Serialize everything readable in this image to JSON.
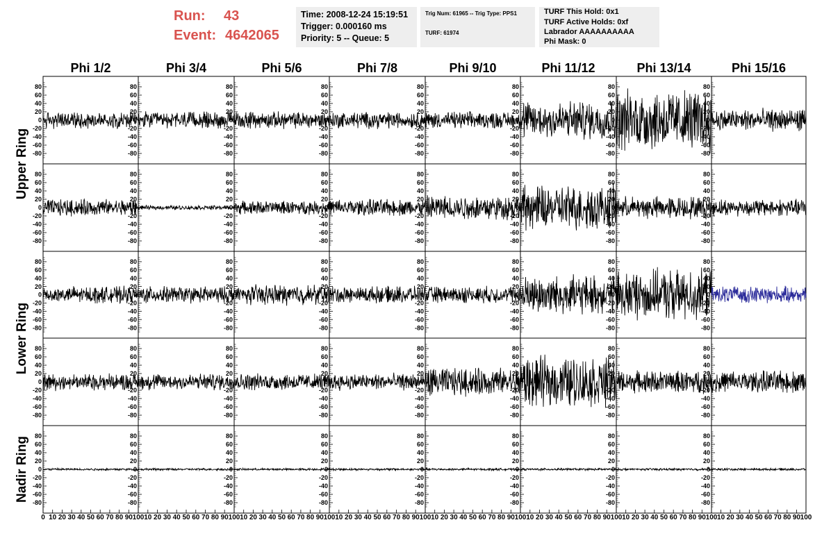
{
  "header": {
    "run_label": "Run:",
    "run_value": "43",
    "event_label": "Event:",
    "event_value": "4642065",
    "time_box": [
      "Time: 2008-12-24 15:19:51",
      "Trigger: 0.000160 ms",
      "Priority: 5 -- Queue: 5"
    ],
    "trig_box": [
      "Trig Num: 61965 -- Trig Type: PPS1",
      "TURF: 61974"
    ],
    "turf_box": [
      "TURF This Hold: 0x1",
      "TURF Active Holds: 0xf",
      "Labrador AAAAAAAAAA",
      "Phi Mask: 0"
    ]
  },
  "chart_data": {
    "type": "line",
    "columns": [
      "Phi 1/2",
      "Phi 3/4",
      "Phi 5/6",
      "Phi 7/8",
      "Phi 9/10",
      "Phi 11/12",
      "Phi 13/14",
      "Phi 15/16"
    ],
    "ring_labels": [
      {
        "label": "Upper Ring",
        "rows": [
          0,
          1
        ]
      },
      {
        "label": "Lower Ring",
        "rows": [
          2,
          3
        ]
      },
      {
        "label": "Nadir Ring",
        "rows": [
          4
        ]
      }
    ],
    "y_ticks": [
      80,
      60,
      40,
      20,
      0,
      -20,
      -40,
      -60,
      -80
    ],
    "x_ticks": [
      0,
      10,
      20,
      30,
      40,
      50,
      60,
      70,
      80,
      90,
      100
    ],
    "ylim": [
      -95,
      95
    ],
    "xlim": [
      0,
      100
    ],
    "series_color": "#000000",
    "highlight_color": "#2b2b9a",
    "highlight_cell": [
      2,
      7
    ],
    "typical_amplitude": [
      [
        15,
        15,
        15,
        15,
        15,
        35,
        55,
        20
      ],
      [
        15,
        4,
        12,
        15,
        22,
        40,
        20,
        15
      ],
      [
        15,
        15,
        18,
        15,
        15,
        35,
        45,
        15
      ],
      [
        15,
        15,
        15,
        15,
        25,
        45,
        20,
        20
      ],
      [
        2,
        2,
        2,
        2,
        2,
        2,
        2,
        2
      ]
    ]
  }
}
